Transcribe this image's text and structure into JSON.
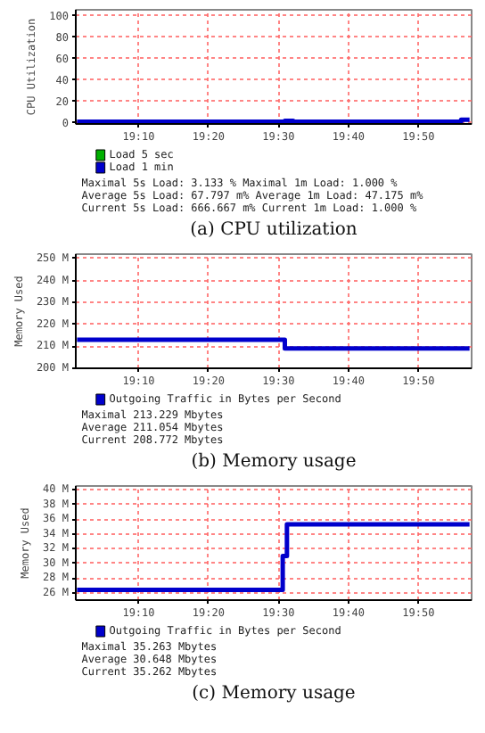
{
  "chart_data": [
    {
      "type": "step",
      "title": "(a) CPU utilization",
      "ylabel": "CPU Utilization",
      "xlim": [
        19.017,
        19.96
      ],
      "ylim": [
        -2,
        105
      ],
      "xticks": [
        {
          "value": 19.1667,
          "label": "19:10"
        },
        {
          "value": 19.3333,
          "label": "19:20"
        },
        {
          "value": 19.5,
          "label": "19:30"
        },
        {
          "value": 19.6667,
          "label": "19:40"
        },
        {
          "value": 19.8333,
          "label": "19:50"
        }
      ],
      "yticks": [
        0,
        20,
        40,
        60,
        80,
        100
      ],
      "grid": true,
      "legend": "bottom",
      "series": [
        {
          "name": "Load 5 sec",
          "color": "#00b000"
        },
        {
          "name": "Load 1 min",
          "color": "#0000cc",
          "x": [
            19.02,
            19.5,
            19.515,
            19.535,
            19.935,
            19.955
          ],
          "values": [
            0,
            0,
            1,
            0,
            2,
            2
          ]
        }
      ],
      "annotations": [
        "Maximal  5s Load:    3.133 %   Maximal  1m Load:    1.000 %",
        "Average  5s Load:  67.797 m%   Average  1m Load:  47.175 m%",
        "Current  5s Load:  666.667 m%   Current  1m Load:    1.000 %"
      ]
    },
    {
      "type": "step",
      "title": "(b) Memory usage",
      "ylabel": "Memory Used",
      "xlim": [
        19.017,
        19.96
      ],
      "ylim": [
        200,
        252
      ],
      "xticks": [
        {
          "value": 19.1667,
          "label": "19:10"
        },
        {
          "value": 19.3333,
          "label": "19:20"
        },
        {
          "value": 19.5,
          "label": "19:30"
        },
        {
          "value": 19.6667,
          "label": "19:40"
        },
        {
          "value": 19.8333,
          "label": "19:50"
        }
      ],
      "yticks": [
        {
          "value": 200,
          "label": "200 M"
        },
        {
          "value": 210,
          "label": "210 M"
        },
        {
          "value": 220,
          "label": "220 M"
        },
        {
          "value": 230,
          "label": "230 M"
        },
        {
          "value": 240,
          "label": "240 M"
        },
        {
          "value": 250,
          "label": "250 M"
        }
      ],
      "grid": true,
      "legend": "bottom",
      "series": [
        {
          "name": "Outgoing Traffic in Bytes per Second",
          "color": "#0000cc",
          "x": [
            19.02,
            19.515,
            19.955
          ],
          "values": [
            213,
            209,
            209
          ]
        }
      ],
      "annotations": [
        "Maximal    213.229 Mbytes",
        "Average    211.054 Mbytes",
        "Current    208.772 Mbytes"
      ]
    },
    {
      "type": "step",
      "title": "(c) Memory usage",
      "ylabel": "Memory Used",
      "xlim": [
        19.017,
        19.96
      ],
      "ylim": [
        25,
        40.5
      ],
      "xticks": [
        {
          "value": 19.1667,
          "label": "19:10"
        },
        {
          "value": 19.3333,
          "label": "19:20"
        },
        {
          "value": 19.5,
          "label": "19:30"
        },
        {
          "value": 19.6667,
          "label": "19:40"
        },
        {
          "value": 19.8333,
          "label": "19:50"
        }
      ],
      "yticks": [
        {
          "value": 26,
          "label": "26 M"
        },
        {
          "value": 28,
          "label": "28 M"
        },
        {
          "value": 30,
          "label": "30 M"
        },
        {
          "value": 32,
          "label": "32 M"
        },
        {
          "value": 34,
          "label": "34 M"
        },
        {
          "value": 36,
          "label": "36 M"
        },
        {
          "value": 38,
          "label": "38 M"
        },
        {
          "value": 40,
          "label": "40 M"
        }
      ],
      "grid": true,
      "legend": "bottom",
      "series": [
        {
          "name": "Outgoing Traffic in Bytes per Second",
          "color": "#0000cc",
          "x": [
            19.02,
            19.51,
            19.52,
            19.535,
            19.955
          ],
          "values": [
            26.4,
            31,
            35.3,
            35.3,
            35.3
          ]
        }
      ],
      "annotations": [
        "Maximal    35.263 Mbytes",
        "Average    30.648 Mbytes",
        "Current    35.262 Mbytes"
      ]
    }
  ]
}
